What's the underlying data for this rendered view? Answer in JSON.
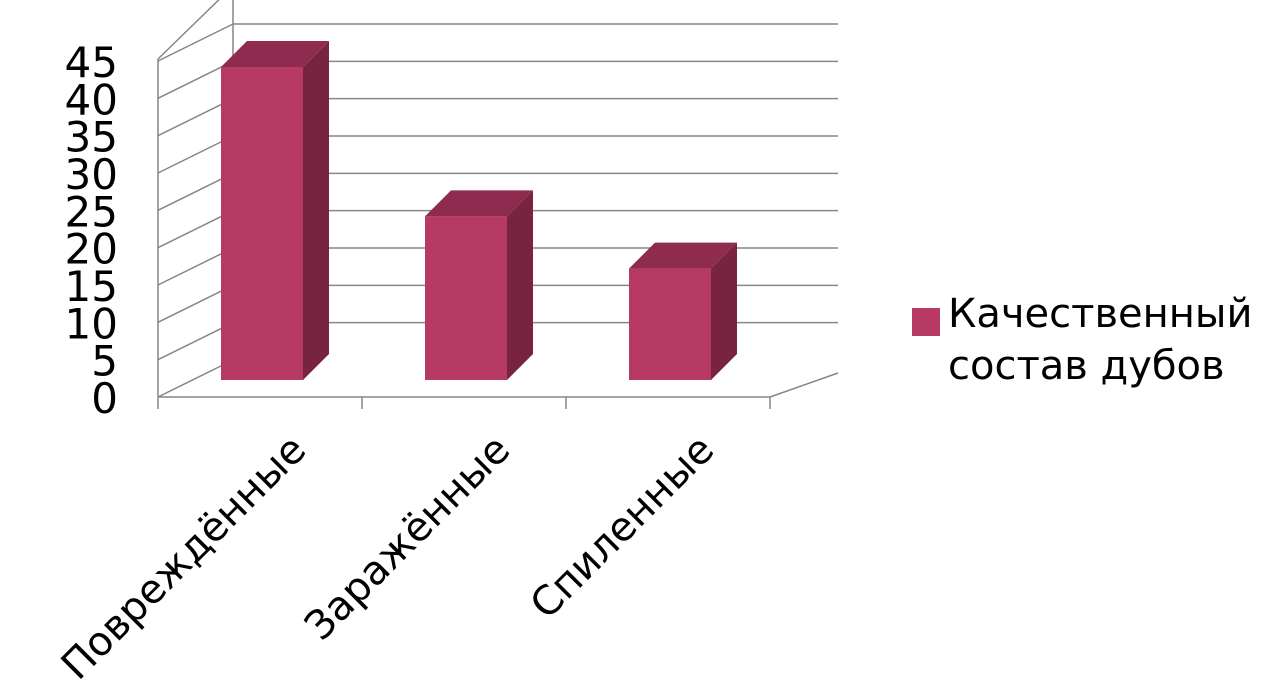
{
  "chart_data": {
    "type": "bar",
    "style": "3d-column",
    "categories": [
      "Повреждённые",
      "Заражённые",
      "Спиленные"
    ],
    "series": [
      {
        "name": "Качественный состав дубов",
        "values": [
          45,
          25,
          18
        ]
      }
    ],
    "ylim": [
      0,
      45
    ],
    "yticks": [
      "0",
      "5",
      "10",
      "15",
      "20",
      "25",
      "30",
      "35",
      "40",
      "45"
    ],
    "grid": true,
    "legend": "right",
    "colors": {
      "bar_front": "#b73a64",
      "bar_side": "#782441",
      "bar_top": "#8e2b4e",
      "grid": "#868686",
      "text": "#000000"
    }
  }
}
